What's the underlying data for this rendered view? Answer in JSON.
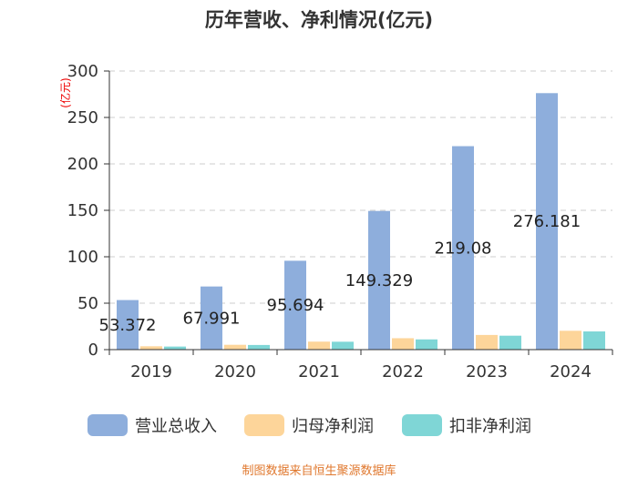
{
  "chart_data": {
    "type": "bar",
    "title": "历年营收、净利情况(亿元)",
    "ylabel": "(亿元)",
    "xlabel": "",
    "categories": [
      "2019",
      "2020",
      "2021",
      "2022",
      "2023",
      "2024"
    ],
    "ylim": [
      0,
      300
    ],
    "yticks": [
      0,
      50,
      100,
      150,
      200,
      250,
      300
    ],
    "grid": true,
    "legend_position": "bottom",
    "series": [
      {
        "name": "营业总收入",
        "color": "#8eaedc",
        "values": [
          53.372,
          67.991,
          95.694,
          149.329,
          219.08,
          276.181
        ],
        "labels": [
          "53.372",
          "67.991",
          "95.694",
          "149.329",
          "219.08",
          "276.181"
        ]
      },
      {
        "name": "归母净利润",
        "color": "#fdd59a",
        "values": [
          3.6,
          5.2,
          8.6,
          12.3,
          15.8,
          20.3
        ]
      },
      {
        "name": "扣非净利润",
        "color": "#7fd6d6",
        "values": [
          3.3,
          5.0,
          8.5,
          11.0,
          15.0,
          19.6
        ]
      }
    ]
  },
  "footer": {
    "source": "制图数据来自恒生聚源数据库"
  }
}
